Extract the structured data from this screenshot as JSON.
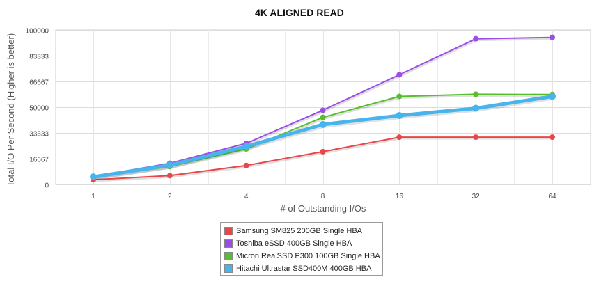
{
  "chart_data": {
    "type": "line",
    "title": "4K ALIGNED READ",
    "xlabel": "# of Outstanding I/Os",
    "ylabel": "Total I/O Per Second (Higher is better)",
    "categories": [
      "1",
      "2",
      "4",
      "8",
      "16",
      "32",
      "64"
    ],
    "y_ticks": [
      "0",
      "16667",
      "33333",
      "50000",
      "66667",
      "83333",
      "100000"
    ],
    "ylim": [
      0,
      100000
    ],
    "grid": true,
    "legend_position": "bottom",
    "series": [
      {
        "name": "Samsung SM825 200GB Single HBA",
        "color": "#e8474a",
        "values": [
          3000,
          5700,
          12300,
          21200,
          30600,
          30600,
          30600
        ]
      },
      {
        "name": "Toshiba eSSD 400GB Single HBA",
        "color": "#9b4ee6",
        "values": [
          5100,
          13700,
          26600,
          48000,
          71000,
          94300,
          95200
        ]
      },
      {
        "name": "Micron RealSSD P300 100GB Single HBA",
        "color": "#57bf2e",
        "values": [
          4700,
          11600,
          23000,
          43400,
          57000,
          58400,
          58200
        ]
      },
      {
        "name": "Hitachi Ultrastar SSD400M 400GB HBA",
        "color": "#47b5ec",
        "values": [
          4900,
          12500,
          24600,
          38800,
          44600,
          49300,
          57000
        ]
      }
    ]
  }
}
